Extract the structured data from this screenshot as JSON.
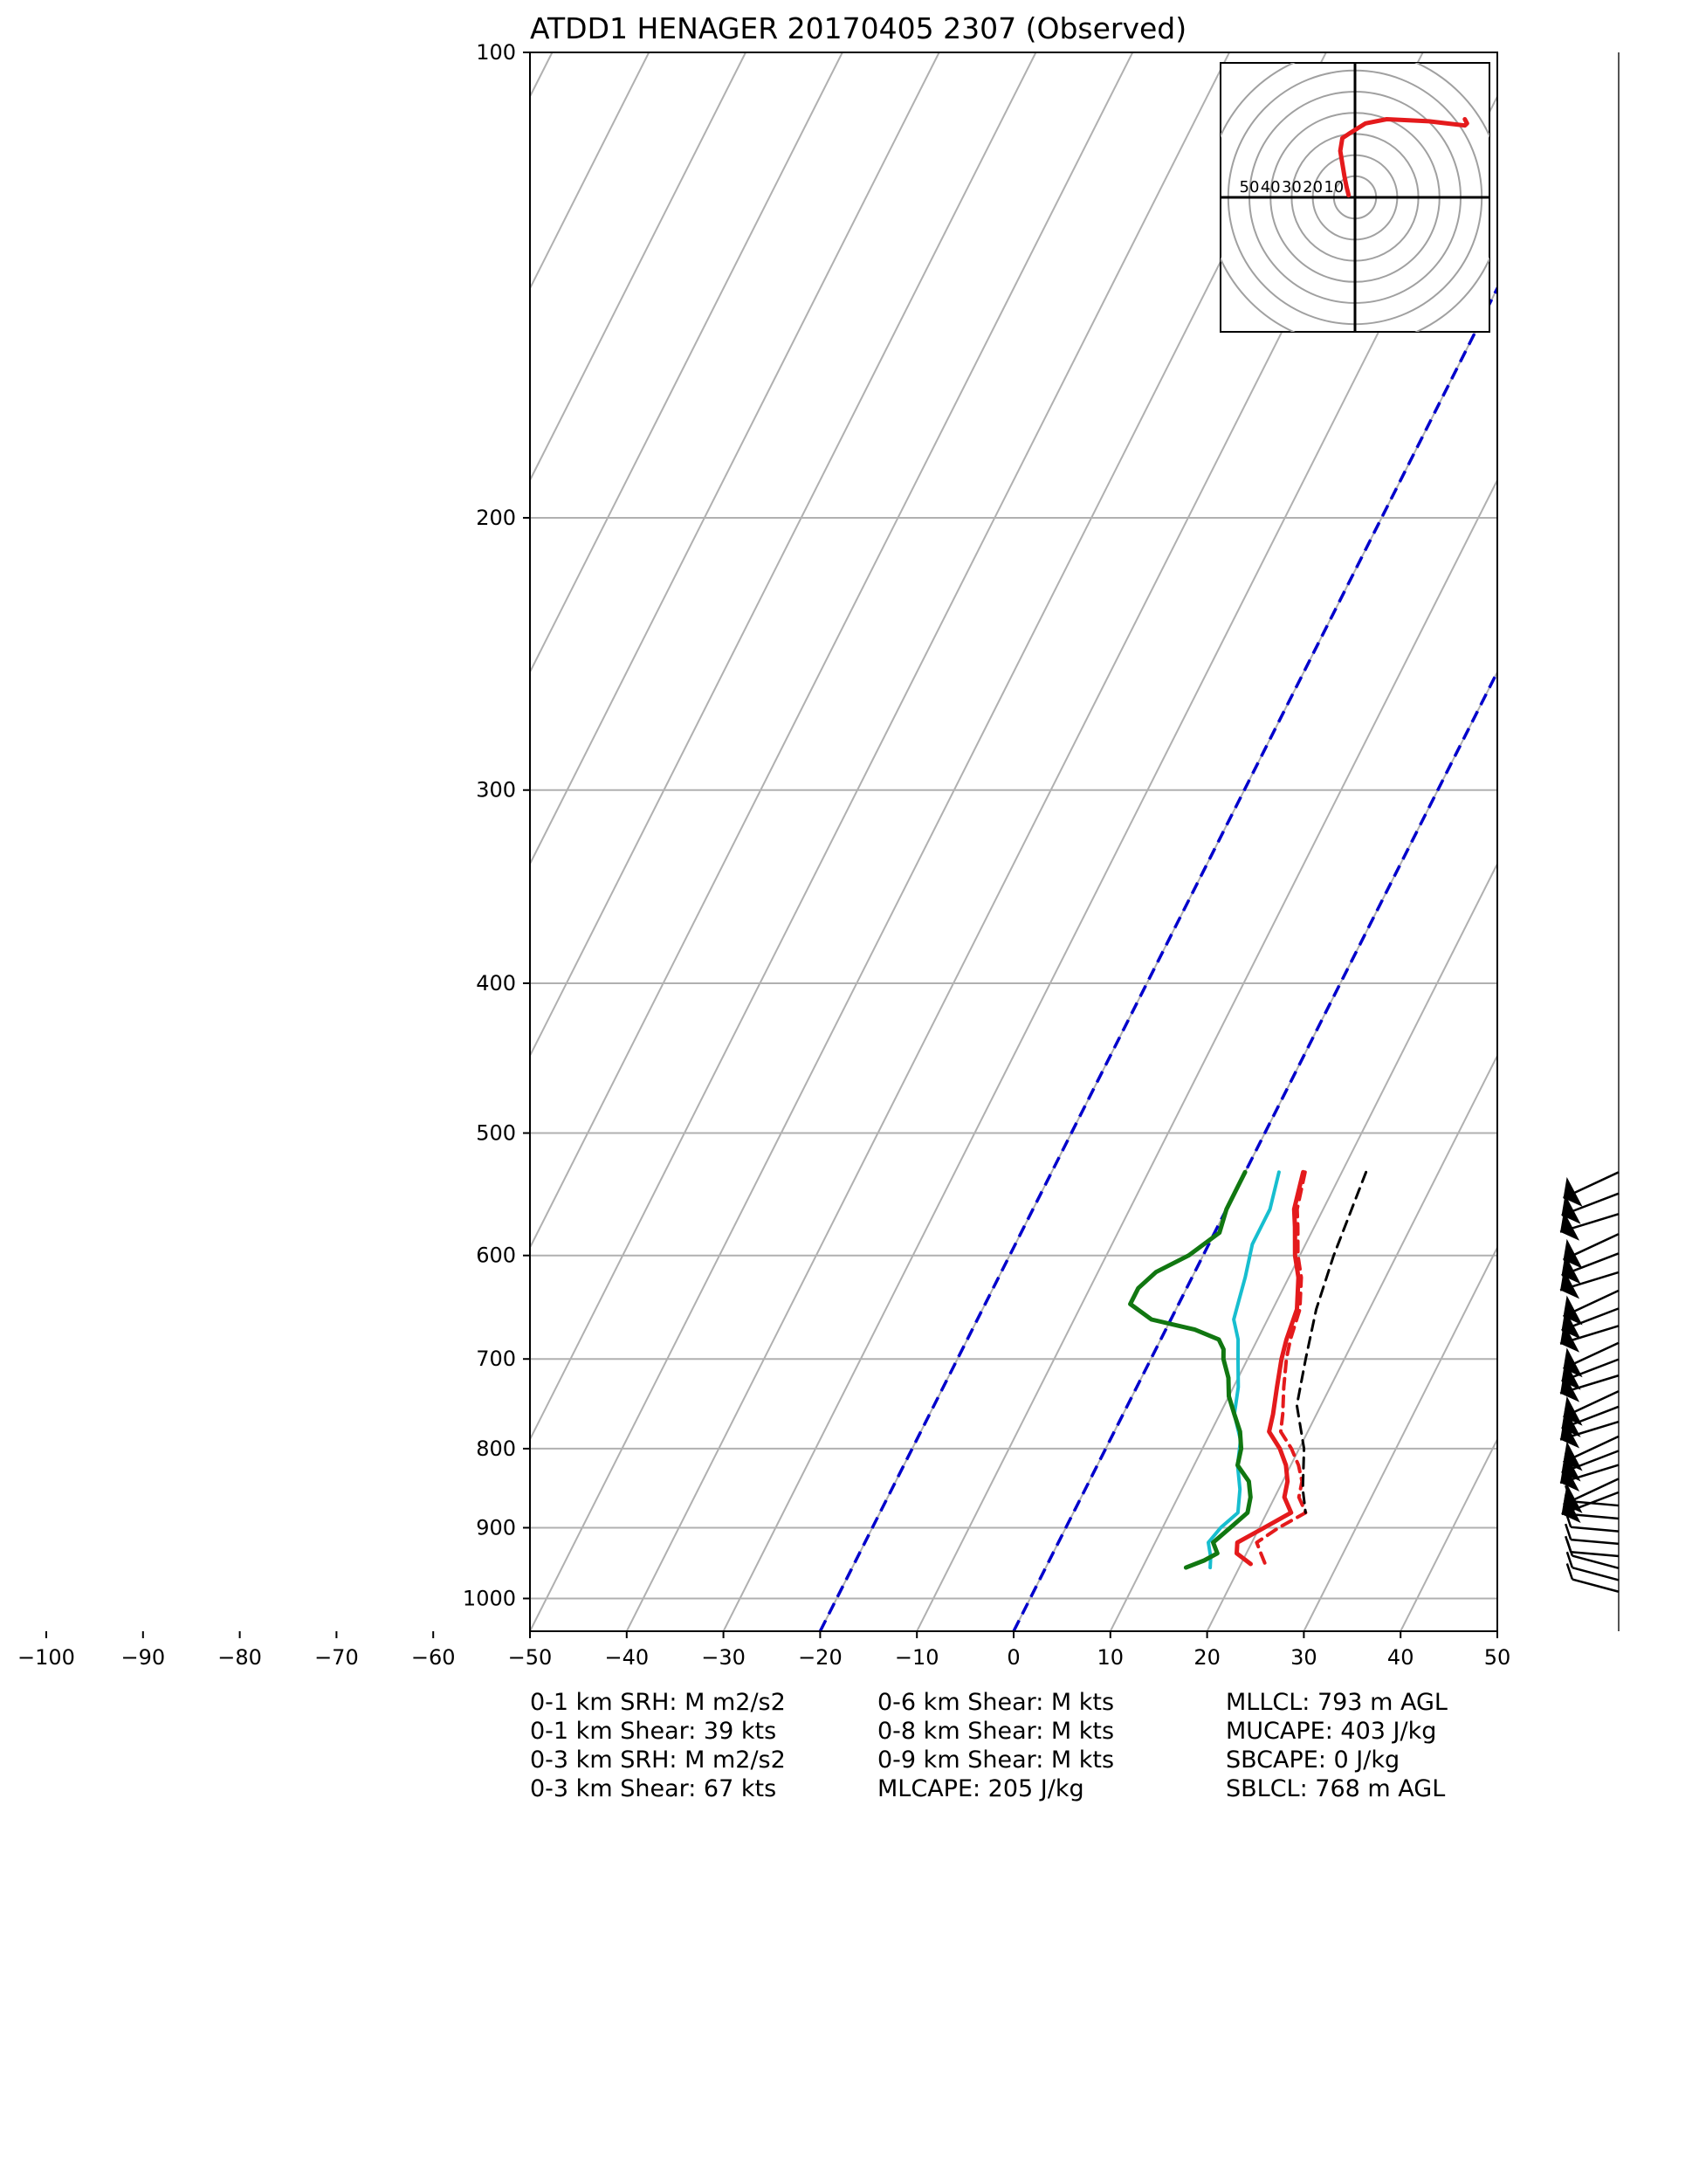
{
  "chart_data": {
    "type": "line",
    "title": "ATDD1 HENAGER 20170405 2307   (Observed)",
    "xlabel": "",
    "ylabel": "",
    "x_axis": {
      "ticks": [
        -100,
        -90,
        -80,
        -70,
        -60,
        -50,
        -40,
        -30,
        -20,
        -10,
        0,
        10,
        20,
        30,
        40,
        50
      ],
      "tick_labels": [
        "−100",
        "−90",
        "−80",
        "−70",
        "−60",
        "−50",
        "−40",
        "−30",
        "−20",
        "−10",
        "0",
        "10",
        "20",
        "30",
        "40",
        "50"
      ],
      "plot_range": [
        -50,
        50
      ]
    },
    "y_axis": {
      "scale": "log",
      "inverted": true,
      "ticks": [
        100,
        200,
        300,
        400,
        500,
        600,
        700,
        800,
        900,
        1000
      ],
      "tick_labels": [
        "100",
        "200",
        "300",
        "400",
        "500",
        "600",
        "700",
        "800",
        "900",
        "1000"
      ],
      "range": [
        1050,
        100
      ]
    },
    "grid": true,
    "skew_isotherms": [
      -170,
      -160,
      -150,
      -140,
      -130,
      -120,
      -110,
      -100,
      -90,
      -80,
      -70,
      -60,
      -50,
      -40,
      -30,
      -20,
      -10,
      0,
      10,
      20,
      30,
      40,
      50
    ],
    "reference_isotherms": [
      {
        "temp": -20,
        "color": "#0000cc",
        "style": "dashed"
      },
      {
        "temp": 0,
        "color": "#0000cc",
        "style": "dashed"
      }
    ],
    "series": [
      {
        "key": "temperature",
        "color": "#e41a1c",
        "style": "solid",
        "width": 5,
        "points": [
          [
            530,
            6.0
          ],
          [
            560,
            7.0
          ],
          [
            575,
            8.0
          ],
          [
            600,
            9.5
          ],
          [
            620,
            11.0
          ],
          [
            650,
            12.5
          ],
          [
            680,
            13.0
          ],
          [
            700,
            13.5
          ],
          [
            730,
            14.5
          ],
          [
            760,
            15.5
          ],
          [
            780,
            16.0
          ],
          [
            800,
            18.0
          ],
          [
            820,
            19.5
          ],
          [
            840,
            20.5
          ],
          [
            860,
            21.0
          ],
          [
            880,
            22.5
          ],
          [
            900,
            20.5
          ],
          [
            920,
            18.5
          ],
          [
            935,
            19.0
          ],
          [
            950,
            21.0
          ]
        ]
      },
      {
        "key": "virtual-temperature",
        "color": "#e41a1c",
        "style": "dashed",
        "width": 4,
        "points": [
          [
            530,
            6.2
          ],
          [
            560,
            7.3
          ],
          [
            575,
            8.3
          ],
          [
            600,
            9.8
          ],
          [
            620,
            11.3
          ],
          [
            650,
            12.8
          ],
          [
            680,
            13.4
          ],
          [
            700,
            14.0
          ],
          [
            730,
            15.2
          ],
          [
            760,
            16.5
          ],
          [
            780,
            17.2
          ],
          [
            800,
            19.2
          ],
          [
            820,
            20.8
          ],
          [
            840,
            22.0
          ],
          [
            860,
            22.5
          ],
          [
            880,
            24.0
          ],
          [
            900,
            22.0
          ],
          [
            920,
            20.5
          ],
          [
            935,
            21.5
          ],
          [
            950,
            22.5
          ]
        ]
      },
      {
        "key": "wet-bulb",
        "color": "#17becf",
        "style": "solid",
        "width": 4,
        "points": [
          [
            530,
            3.5
          ],
          [
            560,
            4.5
          ],
          [
            590,
            4.5
          ],
          [
            620,
            5.5
          ],
          [
            640,
            6.0
          ],
          [
            660,
            6.5
          ],
          [
            680,
            8.0
          ],
          [
            700,
            9.0
          ],
          [
            730,
            10.5
          ],
          [
            760,
            11.5
          ],
          [
            790,
            13.5
          ],
          [
            820,
            14.5
          ],
          [
            850,
            16.0
          ],
          [
            880,
            17.0
          ],
          [
            900,
            16.0
          ],
          [
            920,
            15.5
          ],
          [
            940,
            16.5
          ],
          [
            955,
            17.0
          ]
        ]
      },
      {
        "key": "dewpoint",
        "color": "#117711",
        "style": "solid",
        "width": 5,
        "points": [
          [
            530,
            0.0
          ],
          [
            545,
            0.0
          ],
          [
            560,
            0.0
          ],
          [
            580,
            0.5
          ],
          [
            600,
            -1.5
          ],
          [
            615,
            -4.0
          ],
          [
            630,
            -5.0
          ],
          [
            645,
            -5.0
          ],
          [
            660,
            -2.0
          ],
          [
            670,
            3.0
          ],
          [
            680,
            6.0
          ],
          [
            690,
            7.0
          ],
          [
            700,
            7.5
          ],
          [
            720,
            9.0
          ],
          [
            740,
            10.0
          ],
          [
            760,
            11.5
          ],
          [
            780,
            13.0
          ],
          [
            800,
            14.0
          ],
          [
            820,
            14.5
          ],
          [
            840,
            16.5
          ],
          [
            860,
            17.5
          ],
          [
            880,
            18.0
          ],
          [
            900,
            17.0
          ],
          [
            920,
            16.0
          ],
          [
            935,
            17.0
          ],
          [
            945,
            16.0
          ],
          [
            955,
            14.5
          ]
        ]
      },
      {
        "key": "parcel",
        "color": "#000000",
        "style": "dashed",
        "width": 3,
        "points": [
          [
            530,
            12.5
          ],
          [
            600,
            13.5
          ],
          [
            650,
            14.5
          ],
          [
            700,
            16.0
          ],
          [
            750,
            17.5
          ],
          [
            800,
            20.5
          ],
          [
            850,
            22.5
          ],
          [
            880,
            24.0
          ]
        ]
      }
    ],
    "hodograph": {
      "ring_labels": [
        "50",
        "40",
        "30",
        "20",
        "10"
      ],
      "rings_kts": [
        10,
        20,
        30,
        40,
        50,
        60,
        70
      ],
      "trace": {
        "color": "#e41a1c",
        "points_kts": [
          [
            -3,
            1
          ],
          [
            -4,
            5
          ],
          [
            -5,
            10
          ],
          [
            -7,
            22
          ],
          [
            -6,
            28
          ],
          [
            -3,
            30
          ],
          [
            5,
            35
          ],
          [
            15,
            37
          ],
          [
            35,
            36
          ],
          [
            52,
            34
          ],
          [
            53,
            35
          ],
          [
            52,
            37
          ]
        ]
      }
    },
    "wind_barbs": {
      "pressure_range": [
        530,
        990
      ],
      "count": 28
    },
    "stats": {
      "col1": [
        "0-1 km SRH: M m2/s2",
        "0-1 km Shear: 39 kts",
        "0-3 km SRH: M m2/s2",
        "0-3 km Shear: 67 kts"
      ],
      "col2": [
        "0-6 km Shear: M kts",
        "0-8 km Shear: M kts",
        "0-9 km Shear: M kts",
        "MLCAPE: 205 J/kg"
      ],
      "col3": [
        "MLLCL: 793 m AGL",
        "MUCAPE: 403 J/kg",
        "SBCAPE: 0 J/kg",
        "SBLCL: 768 m AGL"
      ]
    }
  }
}
